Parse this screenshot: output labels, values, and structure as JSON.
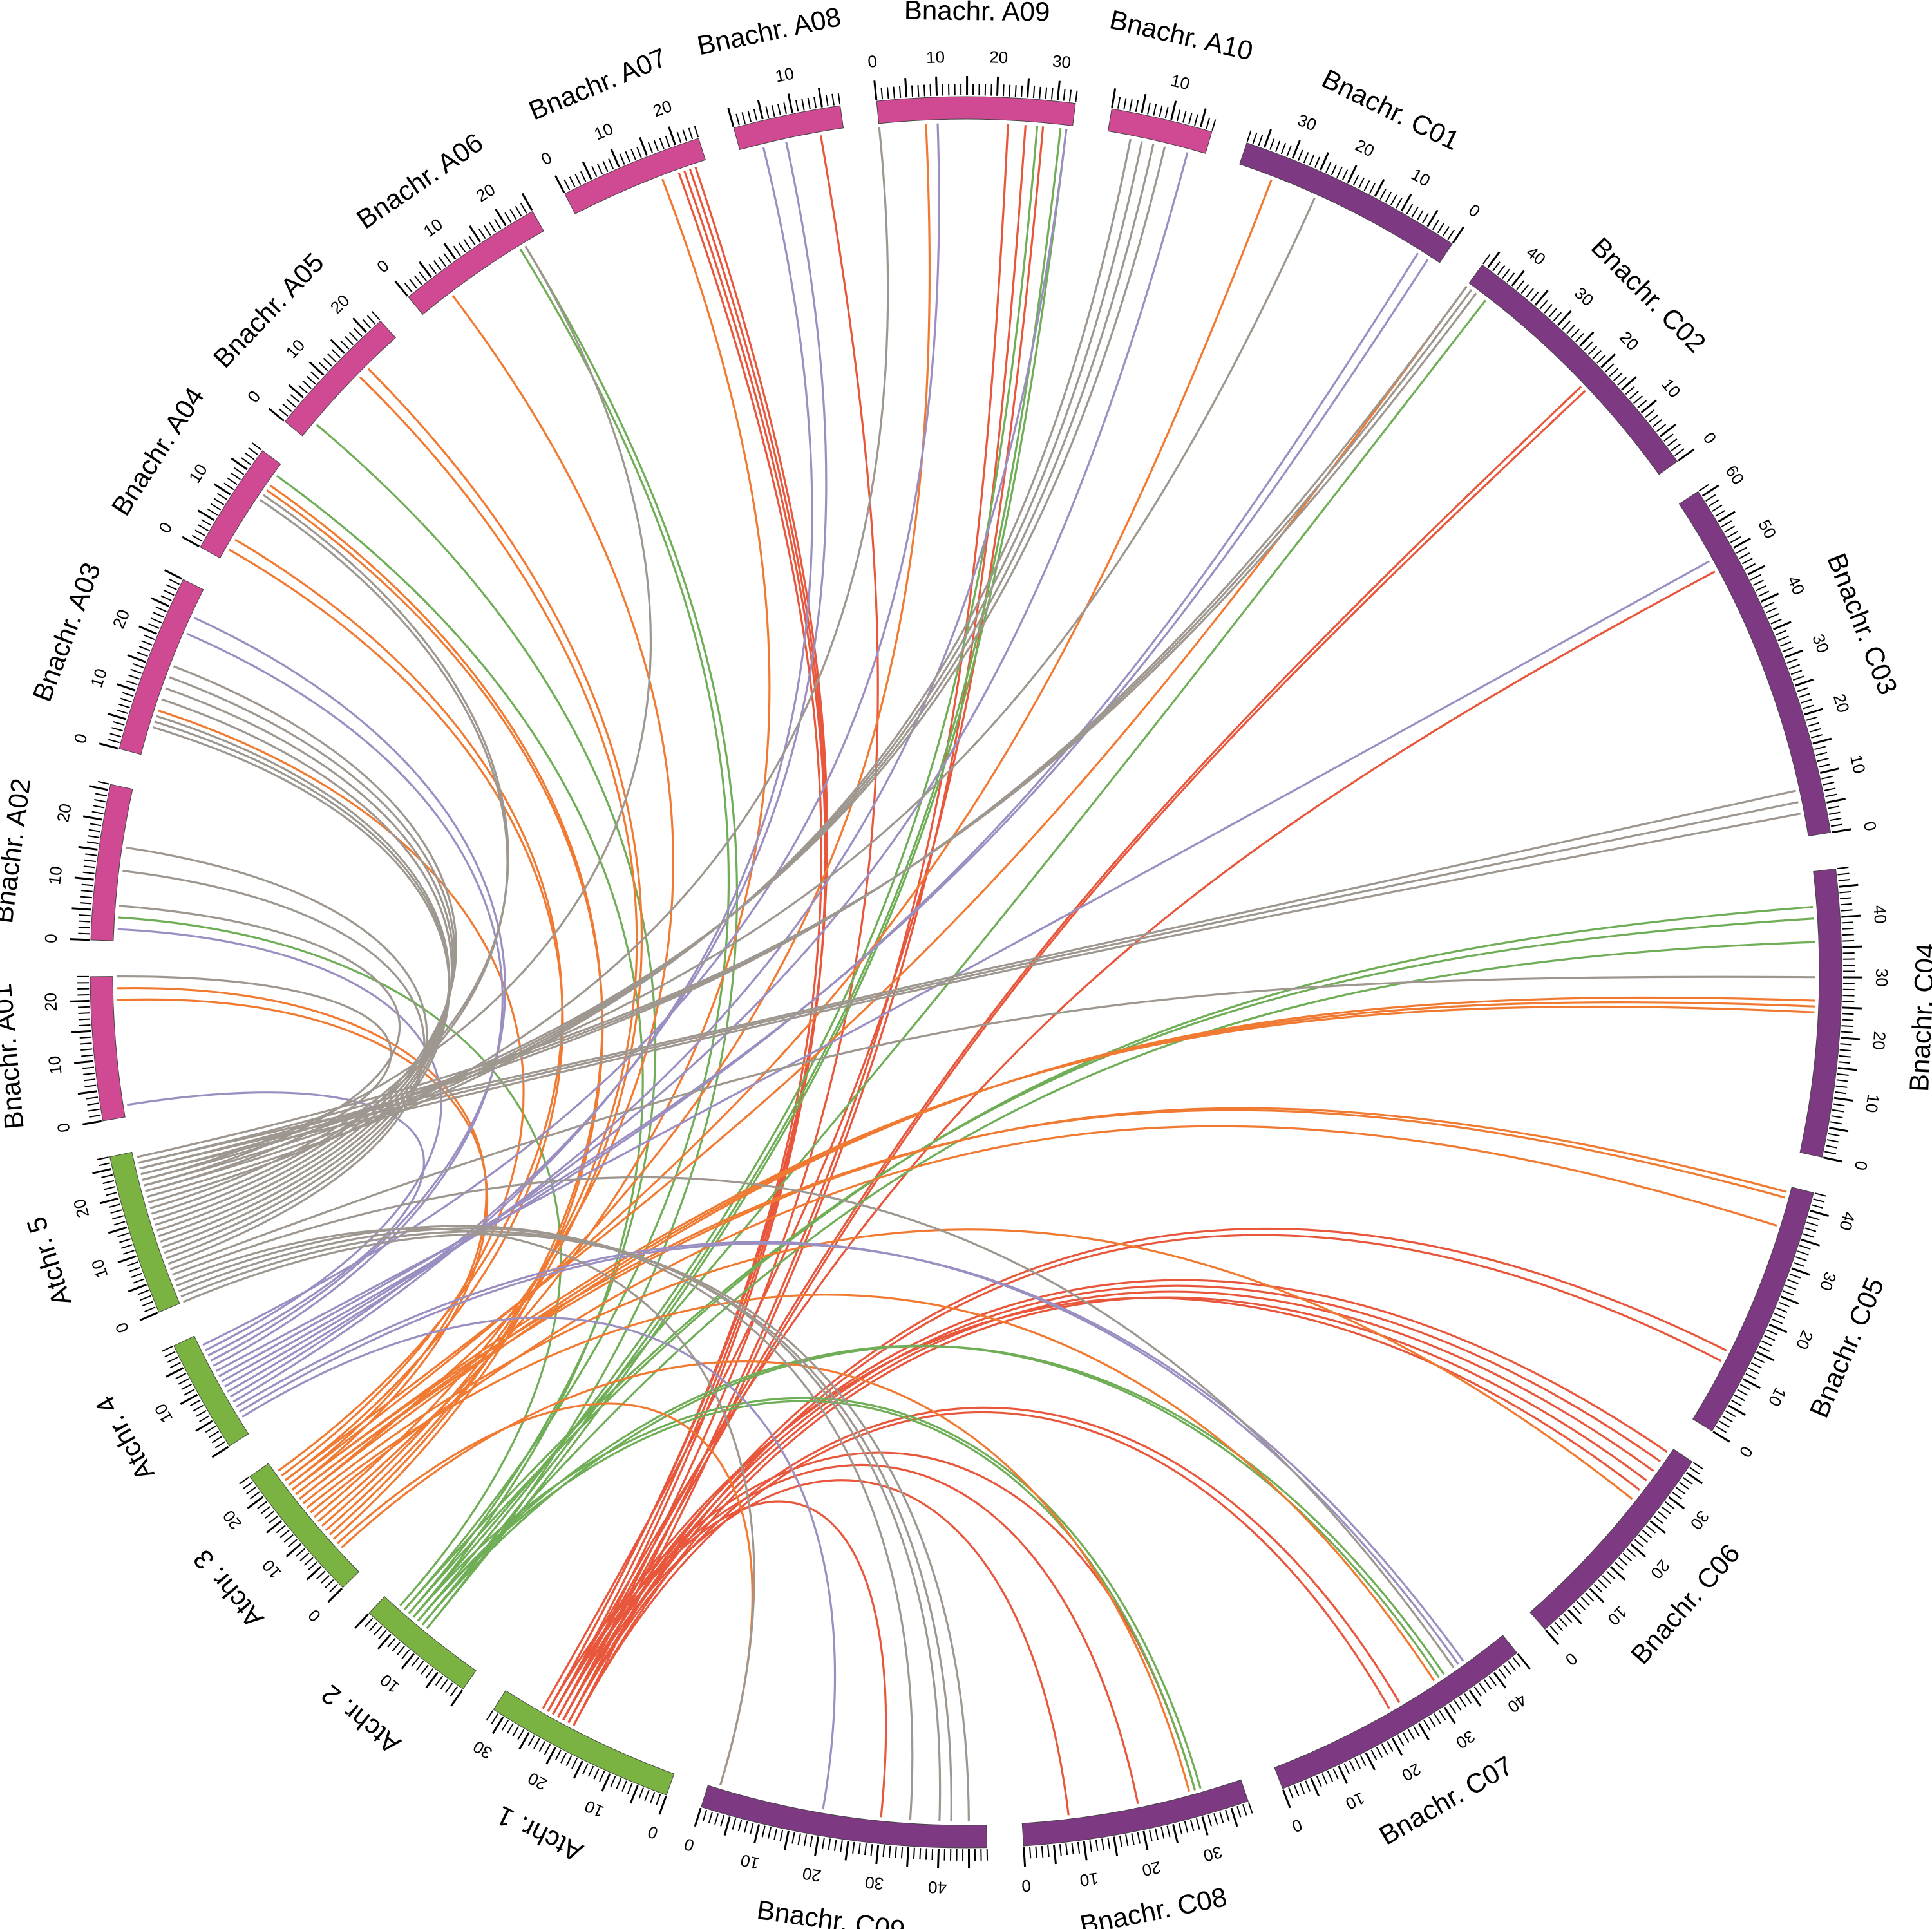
{
  "colors": {
    "arabidopsis": "#7bb342",
    "a_genome": "#d04a93",
    "c_genome": "#7d3a82",
    "link_chr1": "#e8573c",
    "link_chr2": "#6fad56",
    "link_chr3": "#f07a32",
    "link_chr4": "#9b8fc2",
    "link_chr5": "#9e9790"
  },
  "chromosomes": [
    {
      "id": "At1",
      "label": "Atchr. 1",
      "length": 32,
      "ticks": [
        0,
        10,
        20,
        30
      ],
      "color": "arabidopsis"
    },
    {
      "id": "At2",
      "label": "Atchr. 2",
      "length": 20,
      "ticks": [
        10
      ],
      "color": "arabidopsis"
    },
    {
      "id": "At3",
      "label": "Atchr. 3",
      "length": 24,
      "ticks": [
        0,
        10,
        20
      ],
      "color": "arabidopsis"
    },
    {
      "id": "At4",
      "label": "Atchr. 4",
      "length": 19,
      "ticks": [
        10
      ],
      "color": "arabidopsis"
    },
    {
      "id": "At5",
      "label": "Atchr. 5",
      "length": 27,
      "ticks": [
        0,
        10,
        20
      ],
      "color": "arabidopsis"
    },
    {
      "id": "A01",
      "label": "Bnachr. A01",
      "length": 24,
      "ticks": [
        0,
        10,
        20
      ],
      "color": "a_genome"
    },
    {
      "id": "A02",
      "label": "Bnachr. A02",
      "length": 26,
      "ticks": [
        0,
        10,
        20
      ],
      "color": "a_genome"
    },
    {
      "id": "A03",
      "label": "Bnachr. A03",
      "length": 30,
      "ticks": [
        0,
        10,
        20
      ],
      "color": "a_genome"
    },
    {
      "id": "A04",
      "label": "Bnachr. A04",
      "length": 19,
      "ticks": [
        0,
        10
      ],
      "color": "a_genome"
    },
    {
      "id": "A05",
      "label": "Bnachr. A05",
      "length": 23,
      "ticks": [
        0,
        10,
        20
      ],
      "color": "a_genome"
    },
    {
      "id": "A06",
      "label": "Bnachr. A06",
      "length": 25,
      "ticks": [
        0,
        10,
        20
      ],
      "color": "a_genome"
    },
    {
      "id": "A07",
      "label": "Bnachr. A07",
      "length": 24,
      "ticks": [
        0,
        10,
        20
      ],
      "color": "a_genome"
    },
    {
      "id": "A08",
      "label": "Bnachr. A08",
      "length": 18,
      "ticks": [
        10
      ],
      "color": "a_genome"
    },
    {
      "id": "A09",
      "label": "Bnachr. A09",
      "length": 33,
      "ticks": [
        0,
        10,
        20,
        30
      ],
      "color": "a_genome"
    },
    {
      "id": "A10",
      "label": "Bnachr. A10",
      "length": 17,
      "ticks": [
        10
      ],
      "color": "a_genome"
    },
    {
      "id": "C01",
      "label": "Bnachr. C01",
      "length": 38,
      "ticks": [
        0,
        10,
        20,
        30
      ],
      "color": "c_genome"
    },
    {
      "id": "C02",
      "label": "Bnachr. C02",
      "length": 46,
      "ticks": [
        0,
        10,
        20,
        30,
        40
      ],
      "color": "c_genome"
    },
    {
      "id": "C03",
      "label": "Bnachr. C03",
      "length": 61,
      "ticks": [
        0,
        10,
        20,
        30,
        40,
        50,
        60
      ],
      "color": "c_genome"
    },
    {
      "id": "C04",
      "label": "Bnachr. C04",
      "length": 48,
      "ticks": [
        0,
        10,
        20,
        30,
        40
      ],
      "color": "c_genome"
    },
    {
      "id": "C05",
      "label": "Bnachr. C05",
      "length": 43,
      "ticks": [
        0,
        10,
        20,
        30,
        40
      ],
      "color": "c_genome"
    },
    {
      "id": "C06",
      "label": "Bnachr. C06",
      "length": 37,
      "ticks": [
        0,
        10,
        20,
        30
      ],
      "color": "c_genome"
    },
    {
      "id": "C07",
      "label": "Bnachr. C07",
      "length": 45,
      "ticks": [
        0,
        10,
        20,
        30,
        40
      ],
      "color": "c_genome"
    },
    {
      "id": "C08",
      "label": "Bnachr. C08",
      "length": 38,
      "ticks": [
        0,
        10,
        20,
        30
      ],
      "color": "c_genome"
    },
    {
      "id": "C09",
      "label": "Bnachr. C09",
      "length": 48,
      "ticks": [
        0,
        10,
        20,
        30,
        40
      ],
      "color": "c_genome"
    }
  ],
  "links": [
    [
      "At1",
      22,
      "C09",
      30
    ],
    [
      "At1",
      24,
      "A07",
      22
    ],
    [
      "At1",
      23,
      "A07",
      21
    ],
    [
      "At1",
      22,
      "A07",
      20
    ],
    [
      "At1",
      21,
      "A08",
      14
    ],
    [
      "At1",
      20,
      "A09",
      22
    ],
    [
      "At1",
      19,
      "A09",
      25
    ],
    [
      "At1",
      24,
      "C08",
      30
    ],
    [
      "At1",
      23,
      "C08",
      20
    ],
    [
      "At1",
      21,
      "C08",
      8
    ],
    [
      "At1",
      20,
      "C07",
      24
    ],
    [
      "At1",
      19,
      "C07",
      22
    ],
    [
      "At1",
      22,
      "C06",
      36
    ],
    [
      "At1",
      21,
      "C06",
      34
    ],
    [
      "At1",
      20,
      "C06",
      32
    ],
    [
      "At1",
      19,
      "C06",
      30
    ],
    [
      "At1",
      21,
      "C05",
      13
    ],
    [
      "At1",
      20,
      "C05",
      11
    ],
    [
      "At1",
      23,
      "C03",
      48
    ],
    [
      "At1",
      22,
      "C02",
      20
    ],
    [
      "At1",
      21,
      "C02",
      19
    ],
    [
      "At1",
      25,
      "A09",
      28
    ],
    [
      "At1",
      23,
      "C06",
      28
    ],
    [
      "At1",
      24,
      "A07",
      19
    ],
    [
      "At2",
      14,
      "C08",
      31
    ],
    [
      "At2",
      13,
      "C08",
      30
    ],
    [
      "At2",
      12,
      "C07",
      33
    ],
    [
      "At2",
      13,
      "C07",
      32
    ],
    [
      "At2",
      14,
      "A04",
      17
    ],
    [
      "At2",
      15,
      "A05",
      3
    ],
    [
      "At2",
      16,
      "A06",
      20
    ],
    [
      "At2",
      13,
      "A09",
      27
    ],
    [
      "At2",
      12,
      "A09",
      31
    ],
    [
      "At2",
      11,
      "A09",
      32
    ],
    [
      "At2",
      15,
      "C04",
      42
    ],
    [
      "At2",
      16,
      "C04",
      40
    ],
    [
      "At2",
      12,
      "C04",
      36
    ],
    [
      "At2",
      14,
      "C02",
      42
    ],
    [
      "At2",
      17,
      "A02",
      4
    ],
    [
      "At2",
      11,
      "A06",
      21
    ],
    [
      "At3",
      5,
      "C08",
      29
    ],
    [
      "At3",
      6,
      "C09",
      2
    ],
    [
      "At3",
      7,
      "A04",
      14
    ],
    [
      "At3",
      8,
      "A04",
      15
    ],
    [
      "At3",
      9,
      "A05",
      16
    ],
    [
      "At3",
      10,
      "A05",
      14
    ],
    [
      "At3",
      12,
      "A06",
      6
    ],
    [
      "At3",
      11,
      "A07",
      16
    ],
    [
      "At3",
      16,
      "A09",
      8
    ],
    [
      "At3",
      18,
      "A01",
      20
    ],
    [
      "At3",
      19,
      "A01",
      22
    ],
    [
      "At3",
      20,
      "A04",
      2
    ],
    [
      "At3",
      14,
      "C07",
      31
    ],
    [
      "At3",
      15,
      "C06",
      26
    ],
    [
      "At3",
      17,
      "C05",
      42
    ],
    [
      "At3",
      18,
      "C05",
      41
    ],
    [
      "At3",
      13,
      "C05",
      36
    ],
    [
      "At3",
      16,
      "C04",
      26
    ],
    [
      "At3",
      17,
      "C04",
      25
    ],
    [
      "At3",
      18,
      "C04",
      24
    ],
    [
      "At3",
      19,
      "C01",
      32
    ],
    [
      "At3",
      20,
      "C02",
      46
    ],
    [
      "At3",
      21,
      "A03",
      8
    ],
    [
      "At3",
      22,
      "A04",
      4
    ],
    [
      "At4",
      3,
      "C09",
      20
    ],
    [
      "At4",
      4,
      "C07",
      37
    ],
    [
      "At4",
      5,
      "C07",
      36
    ],
    [
      "At4",
      6,
      "A08",
      4
    ],
    [
      "At4",
      7,
      "A08",
      8
    ],
    [
      "At4",
      8,
      "A09",
      32
    ],
    [
      "At4",
      9,
      "A10",
      14
    ],
    [
      "At4",
      10,
      "C01",
      4
    ],
    [
      "At4",
      11,
      "C01",
      2
    ],
    [
      "At4",
      12,
      "C03",
      50
    ],
    [
      "At4",
      13,
      "A03",
      22
    ],
    [
      "At4",
      14,
      "A03",
      25
    ],
    [
      "At4",
      15,
      "A01",
      2
    ],
    [
      "At4",
      16,
      "A02",
      2
    ],
    [
      "At4",
      17,
      "A09",
      10
    ],
    [
      "At5",
      0,
      "C09",
      45
    ],
    [
      "At5",
      1,
      "C09",
      42
    ],
    [
      "At5",
      2,
      "C09",
      40
    ],
    [
      "At5",
      3,
      "C09",
      35
    ],
    [
      "At5",
      4,
      "C09",
      2
    ],
    [
      "At5",
      5,
      "C07",
      35
    ],
    [
      "At5",
      6,
      "C04",
      30
    ],
    [
      "At5",
      7,
      "A02",
      12
    ],
    [
      "At5",
      8,
      "A02",
      16
    ],
    [
      "At5",
      9,
      "A03",
      5
    ],
    [
      "At5",
      10,
      "A03",
      6
    ],
    [
      "At5",
      11,
      "A03",
      7
    ],
    [
      "At5",
      12,
      "A03",
      10
    ],
    [
      "At5",
      13,
      "A03",
      12
    ],
    [
      "At5",
      14,
      "A03",
      14
    ],
    [
      "At5",
      15,
      "A03",
      16
    ],
    [
      "At5",
      16,
      "A04",
      12
    ],
    [
      "At5",
      17,
      "A04",
      13
    ],
    [
      "At5",
      18,
      "A09",
      0
    ],
    [
      "At5",
      19,
      "A10",
      4
    ],
    [
      "At5",
      20,
      "A10",
      6
    ],
    [
      "At5",
      21,
      "A10",
      8
    ],
    [
      "At5",
      22,
      "A10",
      10
    ],
    [
      "At5",
      23,
      "C03",
      4
    ],
    [
      "At5",
      24,
      "C03",
      6
    ],
    [
      "At5",
      25,
      "C03",
      8
    ],
    [
      "At5",
      26,
      "C02",
      44
    ],
    [
      "At5",
      25,
      "C02",
      45
    ],
    [
      "At5",
      24,
      "C02",
      46
    ],
    [
      "At5",
      23,
      "C01",
      24
    ],
    [
      "At5",
      22,
      "A06",
      21
    ],
    [
      "At5",
      21,
      "A02",
      6
    ],
    [
      "At5",
      20,
      "A01",
      24
    ]
  ]
}
